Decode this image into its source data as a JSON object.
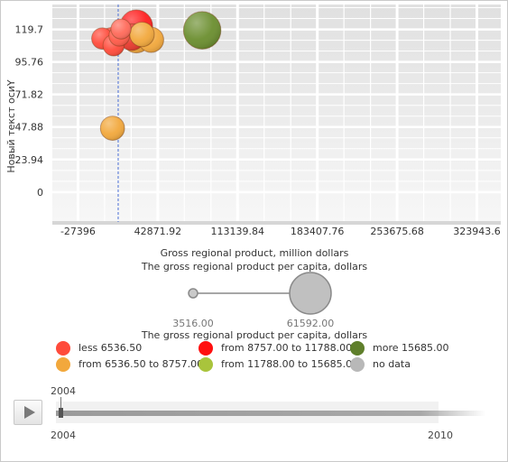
{
  "chart_data": {
    "type": "scatter",
    "title": "",
    "xlabel": "Gross regional product, million dollars",
    "ylabel": "Новый текст осиY",
    "size_label": "The gross regional product per capita, dollars",
    "x_ticks": [
      -27396,
      42871.92,
      113139.84,
      183407.76,
      253675.68,
      323943.6
    ],
    "x_tick_labels": [
      "-27396",
      "42871.92",
      "113139.84",
      "183407.76",
      "253675.68",
      "323943.6"
    ],
    "y_ticks": [
      0,
      23.94,
      47.88,
      71.82,
      95.76,
      119.7
    ],
    "y_tick_labels": [
      "0",
      "23.94",
      "47.88",
      "71.82",
      "95.76",
      "119.7"
    ],
    "xlim": [
      -50000,
      345000
    ],
    "ylim": [
      -22,
      138
    ],
    "reference_line_x": 8000,
    "points": [
      {
        "x": 24000,
        "y": 122,
        "size": 12000,
        "color": "#ff1f1f"
      },
      {
        "x": 82000,
        "y": 119,
        "size": 15800,
        "color": "#6b8e2f"
      },
      {
        "x": 24000,
        "y": 113,
        "size": 9500,
        "color": "#f2a83c"
      },
      {
        "x": 37000,
        "y": 112,
        "size": 7500,
        "color": "#f2a83c"
      },
      {
        "x": 29000,
        "y": 116,
        "size": 7200,
        "color": "#f2a83c"
      },
      {
        "x": 20000,
        "y": 114,
        "size": 8200,
        "color": "#e83a2e"
      },
      {
        "x": -6000,
        "y": 113,
        "size": 5800,
        "color": "#ff4b3b"
      },
      {
        "x": 2000,
        "y": 113,
        "size": 6000,
        "color": "#ff4b3b"
      },
      {
        "x": 4000,
        "y": 108,
        "size": 5800,
        "color": "#ff4b3b"
      },
      {
        "x": 9000,
        "y": 115,
        "size": 5600,
        "color": "#ff5a48"
      },
      {
        "x": 10500,
        "y": 120,
        "size": 5400,
        "color": "#ff6a5a"
      },
      {
        "x": 3000,
        "y": 47,
        "size": 7000,
        "color": "#f2a83c"
      }
    ],
    "size_legend": {
      "min": 3516,
      "max": 61592,
      "min_label": "3516.00",
      "max_label": "61592.00",
      "title": "The gross regional product per capita, dollars"
    },
    "legend": [
      {
        "label": "less 6536.50",
        "color": "#ff4b3b"
      },
      {
        "label": "from 6536.50 to 8757.00",
        "color": "#f2a83c"
      },
      {
        "label": "from 8757.00 to 11788.00",
        "color": "#ff0f0f"
      },
      {
        "label": "from 11788.00 to 15685.00",
        "color": "#a9c43c"
      },
      {
        "label": "more 15685.00",
        "color": "#5f7f2b"
      },
      {
        "label": "no data",
        "color": "#b8b8b8"
      }
    ]
  },
  "timeline": {
    "start": "2004",
    "end": "2010",
    "current": "2004"
  }
}
